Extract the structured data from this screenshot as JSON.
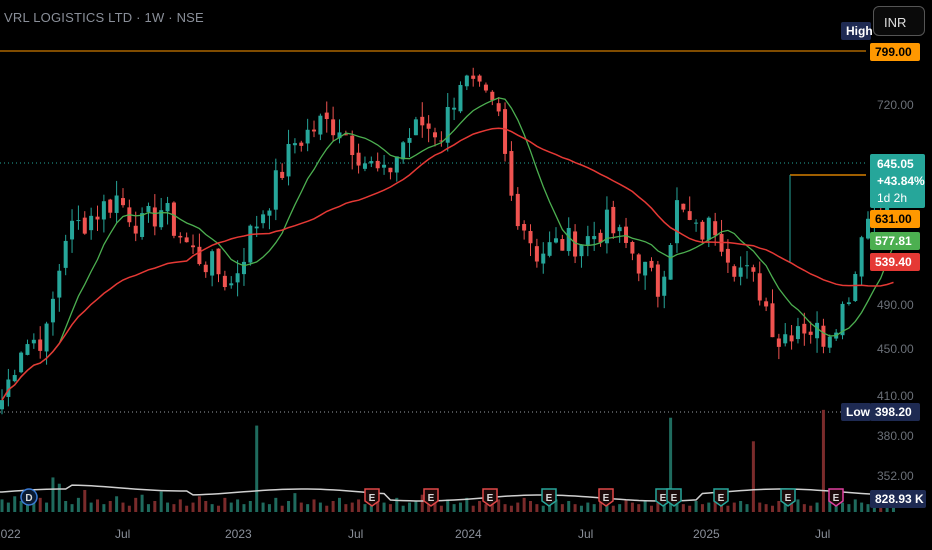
{
  "header": {
    "symbol_title": "VRL LOGISTICS LTD · 1W · NSE",
    "currency": "INR"
  },
  "chart_data": {
    "type": "candlestick",
    "title": "VRL LOGISTICS LTD · 1W · NSE",
    "y_axis": {
      "range": [
        340,
        815
      ],
      "ticks": [
        "720.00",
        "490.00",
        "450.00",
        "410.00",
        "380.00",
        "352.00"
      ]
    },
    "x_axis": {
      "tick_labels": [
        "2022",
        "Jul",
        "2023",
        "Jul",
        "2024",
        "Jul",
        "2025",
        "Jul"
      ]
    },
    "markers": {
      "high_label": "High",
      "high_value": "799.00",
      "low_label": "Low",
      "low_value": "398.20"
    },
    "last": {
      "price": "645.05",
      "change": "+43.84%",
      "countdown": "1d 2h",
      "level_orange": "631.00",
      "ma_short": "577.81",
      "ma_long": "539.40"
    },
    "volume_value": "828.93 K",
    "event_markers": [
      "D",
      "E",
      "E",
      "E",
      "E",
      "E",
      "E",
      "E",
      "E",
      "E",
      "E"
    ],
    "colors": {
      "up": "#26a69a",
      "down": "#ef5350",
      "ma_short": "#4caf50",
      "ma_long": "#e53935",
      "level": "#ff9800",
      "label_bg": "#1e2a52"
    },
    "anchors": [
      [
        -8,
        360
      ],
      [
        0,
        400
      ],
      [
        3,
        460
      ],
      [
        7,
        470
      ],
      [
        10,
        580
      ],
      [
        14,
        600
      ],
      [
        18,
        620
      ],
      [
        22,
        588
      ],
      [
        25,
        608
      ],
      [
        30,
        560
      ],
      [
        33,
        545
      ],
      [
        36,
        525
      ],
      [
        39,
        580
      ],
      [
        42,
        620
      ],
      [
        46,
        680
      ],
      [
        50,
        700
      ],
      [
        53,
        700
      ],
      [
        57,
        660
      ],
      [
        60,
        640
      ],
      [
        63,
        680
      ],
      [
        66,
        700
      ],
      [
        69,
        690
      ],
      [
        72,
        750
      ],
      [
        75,
        730
      ],
      [
        78,
        705
      ],
      [
        80,
        620
      ],
      [
        84,
        560
      ],
      [
        88,
        570
      ],
      [
        92,
        575
      ],
      [
        95,
        590
      ],
      [
        99,
        560
      ],
      [
        103,
        520
      ],
      [
        106,
        610
      ],
      [
        109,
        580
      ],
      [
        112,
        590
      ],
      [
        115,
        550
      ],
      [
        119,
        520
      ],
      [
        122,
        465
      ],
      [
        125,
        485
      ],
      [
        129,
        470
      ],
      [
        132,
        500
      ],
      [
        134,
        540
      ],
      [
        135,
        590
      ],
      [
        137,
        605
      ],
      [
        140,
        640
      ]
    ],
    "volume": [
      8,
      6,
      10,
      7,
      5,
      12,
      9,
      6,
      22,
      18,
      7,
      5,
      9,
      14,
      6,
      8,
      5,
      7,
      10,
      6,
      4,
      9,
      11,
      5,
      7,
      13,
      6,
      5,
      8,
      4,
      6,
      10,
      7,
      5,
      4,
      9,
      6,
      8,
      5,
      7,
      55,
      6,
      5,
      9,
      4,
      7,
      12,
      6,
      5,
      8,
      6,
      4,
      7,
      9,
      5,
      6,
      8,
      5,
      4,
      7,
      6,
      5,
      9,
      4,
      6,
      7,
      11,
      5,
      6,
      4,
      8,
      5,
      6,
      9,
      4,
      7,
      5,
      6,
      8,
      5,
      4,
      6,
      9,
      7,
      5,
      4,
      6,
      8,
      5,
      7,
      5,
      4,
      6,
      5,
      7,
      6,
      4,
      5,
      8,
      6,
      5,
      7,
      4,
      6,
      5,
      60,
      6,
      5,
      4,
      7,
      5,
      6,
      8,
      5,
      4,
      6,
      7,
      5,
      45,
      6,
      5,
      4,
      7,
      5,
      6,
      8,
      5,
      4,
      6,
      65,
      9,
      7,
      6,
      5,
      8,
      6,
      5,
      4,
      7,
      6,
      5
    ]
  }
}
